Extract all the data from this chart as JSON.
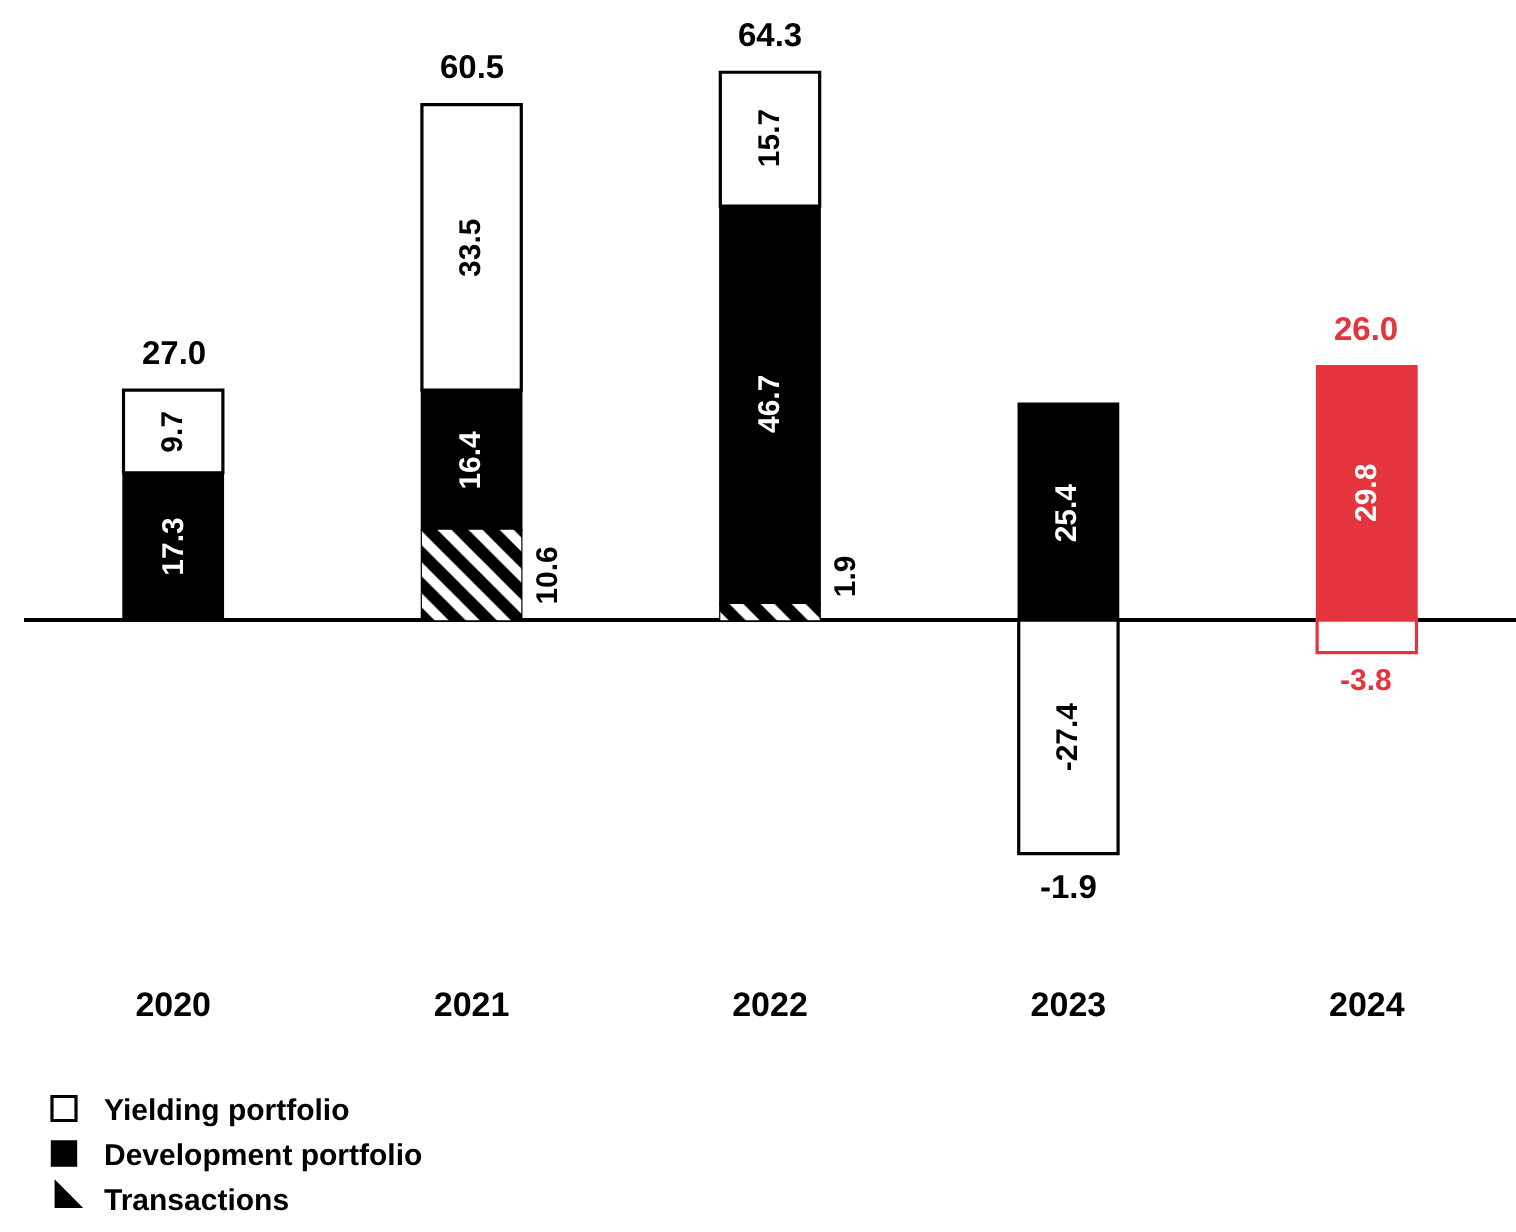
{
  "chart_data": {
    "type": "bar",
    "stacked": true,
    "categories": [
      "2020",
      "2021",
      "2022",
      "2023",
      "2024"
    ],
    "series": [
      {
        "name": "Transactions",
        "colors": [
          "#000000",
          "#000000",
          "#000000",
          "#000000",
          "#000000"
        ],
        "values": [
          null,
          10.6,
          1.9,
          null,
          null
        ]
      },
      {
        "name": "Development portfolio",
        "colors": [
          "#000000",
          "#000000",
          "#000000",
          "#000000",
          "#e4343d"
        ],
        "values": [
          17.3,
          16.4,
          46.7,
          25.4,
          29.8
        ]
      },
      {
        "name": "Yielding portfolio",
        "colors": [
          "#000000",
          "#000000",
          "#000000",
          "#000000",
          "#e4343d"
        ],
        "values": [
          9.7,
          33.5,
          15.7,
          -27.4,
          -3.8
        ]
      }
    ],
    "data_labels": true,
    "totals": [
      "27.0",
      "60.5",
      "64.3",
      "-1.9",
      "26.0"
    ],
    "legend": "bottom left"
  }
}
